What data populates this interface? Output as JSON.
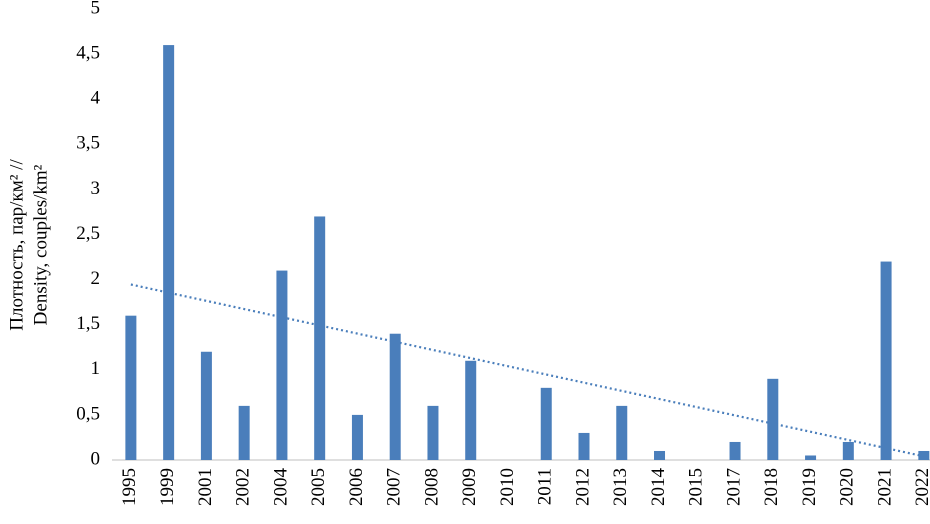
{
  "chart_data": {
    "type": "bar",
    "ylabel": [
      "Плотность, пар/км² //",
      "Density, couples/km²"
    ],
    "categories": [
      "1995",
      "1999",
      "2001",
      "2002",
      "2004",
      "2005",
      "2006",
      "2007",
      "2008",
      "2009",
      "2010",
      "2011",
      "2012",
      "2013",
      "2014",
      "2015",
      "2017",
      "2018",
      "2019",
      "2020",
      "2021",
      "2022"
    ],
    "values": [
      1.6,
      4.6,
      1.2,
      0.6,
      2.1,
      2.7,
      0.5,
      1.4,
      0.6,
      1.1,
      0,
      0.8,
      0.3,
      0.6,
      0.1,
      0,
      0.2,
      0.9,
      0.05,
      0.2,
      2.2,
      0.1
    ],
    "color": "#4a7ebb",
    "trendline": "linear",
    "trend_color": "#4a7ebb",
    "ylim": [
      0,
      5
    ],
    "yticks": [
      0,
      {
        "value": 0.5,
        "label": "0,5"
      },
      1,
      {
        "value": 1.5,
        "label": "1,5"
      },
      2,
      {
        "value": 2.5,
        "label": "2,5"
      },
      3,
      {
        "value": 3.5,
        "label": "3,5"
      },
      4,
      {
        "value": 4.5,
        "label": "4,5"
      },
      5
    ],
    "grid": false
  }
}
